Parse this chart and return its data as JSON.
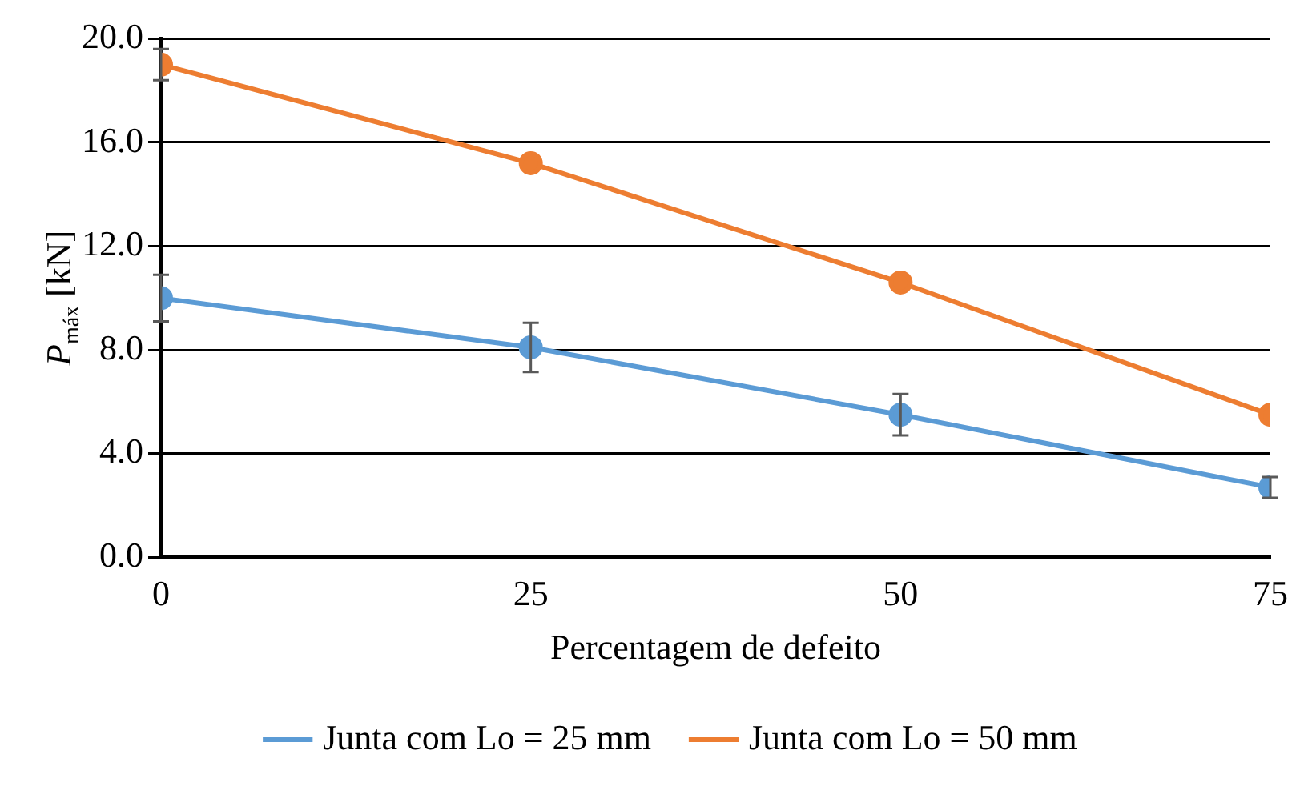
{
  "chart_data": {
    "type": "line",
    "xlabel": "Percentagem de defeito",
    "ylabel": "P$_{máx}$ [kN]",
    "x": [
      0,
      25,
      50,
      75
    ],
    "series": [
      {
        "name": "Junta com Lo = 25 mm",
        "color": "#5b9bd5",
        "values": [
          10.0,
          8.1,
          5.5,
          2.7
        ],
        "errors": [
          0.9,
          0.95,
          0.8,
          0.4
        ]
      },
      {
        "name": "Junta com Lo = 50 mm",
        "color": "#ed7d31",
        "values": [
          19.0,
          15.2,
          10.6,
          5.5
        ],
        "errors": [
          0.6,
          null,
          null,
          null
        ]
      }
    ],
    "xlim": [
      0,
      75
    ],
    "xticks": [
      0,
      25,
      50,
      75
    ],
    "ylim": [
      0,
      20
    ],
    "yticks": [
      {
        "value": 0,
        "label": "0.0"
      },
      {
        "value": 4,
        "label": "4.0"
      },
      {
        "value": 8,
        "label": "8.0"
      },
      {
        "value": 12,
        "label": "12.0"
      },
      {
        "value": 16,
        "label": "16.0"
      },
      {
        "value": 20,
        "label": "20.0"
      }
    ],
    "grid": "y",
    "legend": "bottom",
    "marker": "circle",
    "line_style": "solid"
  }
}
